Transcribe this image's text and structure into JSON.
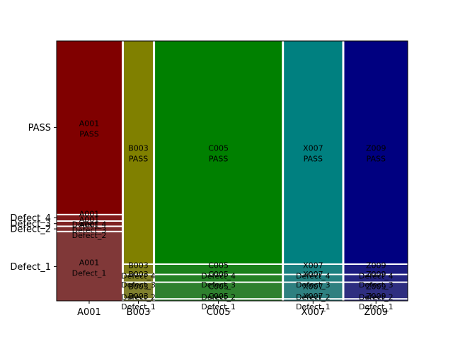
{
  "chart_data": {
    "type": "mosaic",
    "title": "",
    "xlabel": "",
    "ylabel": "",
    "x_categories": [
      "A001",
      "B003",
      "C005",
      "X007",
      "Z009"
    ],
    "y_tick_labels": [
      "Defect_1",
      "Defect_2",
      "Defect_3",
      "Defect_4",
      "PASS"
    ],
    "x_proportions": [
      0.19,
      0.085,
      0.37,
      0.17,
      0.185
    ],
    "segment_order": [
      "Defect_1",
      "Defect_2",
      "Defect_3",
      "Defect_4",
      "PASS"
    ],
    "colors": {
      "A001": "#800000",
      "B003": "#808000",
      "C005": "#008000",
      "X007": "#008080",
      "Z009": "#000080"
    },
    "columns": [
      {
        "name": "A001",
        "segments": [
          {
            "category": "Defect_1",
            "fraction": 0.27,
            "label": "A001\nDefect_1"
          },
          {
            "category": "Defect_2",
            "fraction": 0.015,
            "label": "A001\nDefect_2"
          },
          {
            "category": "Defect_3",
            "fraction": 0.015,
            "label": "A001\nDefect_3"
          },
          {
            "category": "Defect_4",
            "fraction": 0.02,
            "label": "A001\nDefect_4"
          },
          {
            "category": "PASS",
            "fraction": 0.68,
            "label": "A001\nPASS"
          }
        ]
      },
      {
        "name": "B003",
        "segments": [
          {
            "category": "Defect_1",
            "fraction": 0.005,
            "label": "B003\nDefect_1"
          },
          {
            "category": "Defect_2",
            "fraction": 0.06,
            "label": "B003\nDefect_2"
          },
          {
            "category": "Defect_3",
            "fraction": 0.025,
            "label": "B003\nDefect_3"
          },
          {
            "category": "Defect_4",
            "fraction": 0.035,
            "label": "B003\nDefect_4"
          },
          {
            "category": "PASS",
            "fraction": 0.875,
            "label": "B003\nPASS"
          }
        ]
      },
      {
        "name": "C005",
        "segments": [
          {
            "category": "Defect_1",
            "fraction": 0.005,
            "label": "C005\nDefect_1"
          },
          {
            "category": "Defect_2",
            "fraction": 0.06,
            "label": "C005\nDefect_2"
          },
          {
            "category": "Defect_3",
            "fraction": 0.025,
            "label": "C005\nDefect_3"
          },
          {
            "category": "Defect_4",
            "fraction": 0.035,
            "label": "C005\nDefect_4"
          },
          {
            "category": "PASS",
            "fraction": 0.875,
            "label": "C005\nPASS"
          }
        ]
      },
      {
        "name": "X007",
        "segments": [
          {
            "category": "Defect_1",
            "fraction": 0.005,
            "label": "X007\nDefect_1"
          },
          {
            "category": "Defect_2",
            "fraction": 0.06,
            "label": "X007\nDefect_2"
          },
          {
            "category": "Defect_3",
            "fraction": 0.025,
            "label": "X007\nDefect_3"
          },
          {
            "category": "Defect_4",
            "fraction": 0.035,
            "label": "X007\nDefect_4"
          },
          {
            "category": "PASS",
            "fraction": 0.875,
            "label": "X007\nPASS"
          }
        ]
      },
      {
        "name": "Z009",
        "segments": [
          {
            "category": "Defect_1",
            "fraction": 0.005,
            "label": "Z009\nDefect_1"
          },
          {
            "category": "Defect_2",
            "fraction": 0.06,
            "label": "Z009\nDefect_2"
          },
          {
            "category": "Defect_3",
            "fraction": 0.025,
            "label": "Z009\nDefect_3"
          },
          {
            "category": "Defect_4",
            "fraction": 0.035,
            "label": "Z009\nDefect_4"
          },
          {
            "category": "PASS",
            "fraction": 0.875,
            "label": "Z009\nPASS"
          }
        ]
      }
    ]
  }
}
